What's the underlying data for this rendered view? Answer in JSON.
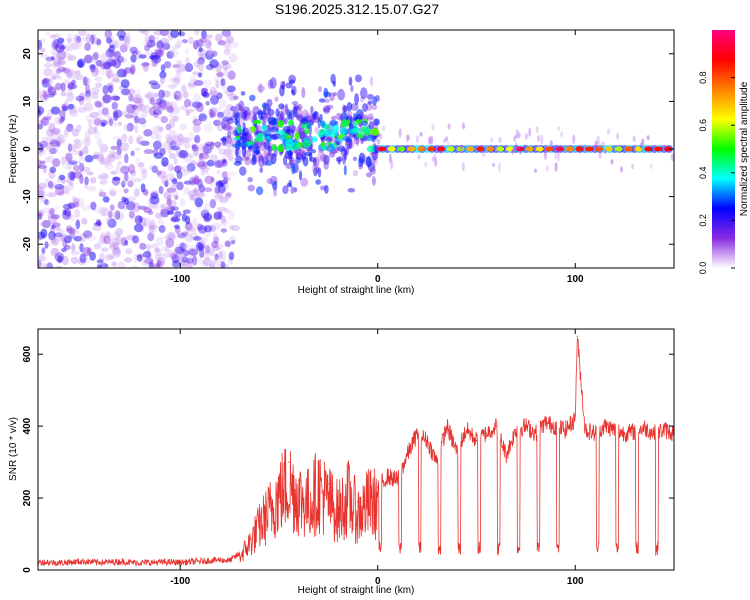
{
  "title": "S196.2025.312.15.07.G27",
  "chart_data": [
    {
      "type": "heatmap",
      "xlabel": "Height of straight line (km)",
      "ylabel": "Frequency (Hz)",
      "xlim": [
        -172,
        150
      ],
      "ylim": [
        -25,
        25
      ],
      "x_ticks": [
        -100,
        0,
        100
      ],
      "y_ticks": [
        -20,
        -10,
        0,
        10,
        20
      ],
      "colorbar": {
        "label": "Normalized spectral amplitude",
        "range": [
          0,
          1
        ],
        "ticks": [
          0.0,
          0.2,
          0.4,
          0.6,
          0.8
        ],
        "colors": [
          "#ffffff",
          "#8a2be2",
          "#0000ff",
          "#00ffff",
          "#00ff00",
          "#ffff00",
          "#ff8000",
          "#ff0000",
          "#ff0080"
        ]
      },
      "features": [
        {
          "x_range": [
            -172,
            -72
          ],
          "description": "scattered noise across all frequencies"
        },
        {
          "x_range": [
            -72,
            0
          ],
          "frequency": 3,
          "description": "broadened band with spread up to +/-12 Hz"
        },
        {
          "x_range": [
            0,
            150
          ],
          "frequency": 0,
          "description": "narrow strong band near 0 Hz"
        }
      ]
    },
    {
      "type": "line",
      "xlabel": "Height of straight line (km)",
      "ylabel": "SNR (10 * v/v)",
      "xlim": [
        -172,
        150
      ],
      "ylim": [
        0,
        670
      ],
      "x_ticks": [
        -100,
        0,
        100
      ],
      "y_ticks": [
        0,
        200,
        400,
        600
      ],
      "color": "#e8322e",
      "x": [
        -172,
        -160,
        -150,
        -140,
        -130,
        -120,
        -110,
        -100,
        -90,
        -80,
        -75,
        -70,
        -65,
        -60,
        -55,
        -50,
        -45,
        -40,
        -35,
        -30,
        -25,
        -20,
        -15,
        -10,
        -5,
        0,
        5,
        10,
        15,
        20,
        25,
        30,
        35,
        40,
        45,
        50,
        55,
        60,
        65,
        70,
        75,
        80,
        85,
        90,
        95,
        100,
        101,
        105,
        110,
        115,
        120,
        125,
        130,
        135,
        140,
        145,
        150
      ],
      "values": [
        22,
        20,
        24,
        21,
        23,
        20,
        22,
        21,
        24,
        28,
        26,
        45,
        90,
        150,
        200,
        260,
        300,
        250,
        230,
        280,
        240,
        200,
        250,
        190,
        230,
        230,
        260,
        250,
        320,
        380,
        360,
        300,
        400,
        330,
        390,
        360,
        380,
        400,
        320,
        390,
        400,
        380,
        410,
        400,
        390,
        420,
        650,
        390,
        380,
        400,
        390,
        380,
        385,
        395,
        380,
        390,
        380
      ]
    }
  ]
}
